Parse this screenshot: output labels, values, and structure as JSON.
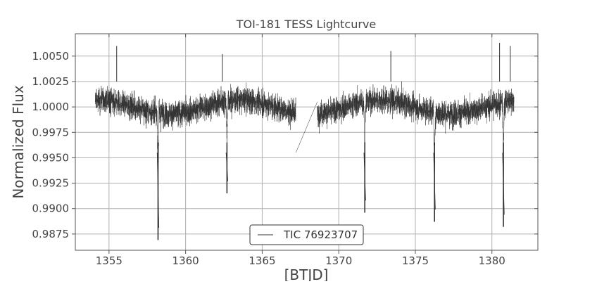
{
  "chart_data": {
    "type": "line",
    "title": "TOI-181 TESS Lightcurve",
    "xlabel": "[BTJD]",
    "ylabel": "Normalized Flux",
    "xlim": [
      1352.8,
      1383.0
    ],
    "ylim": [
      0.9859,
      1.0072
    ],
    "xticks": [
      1355,
      1360,
      1365,
      1370,
      1375,
      1380
    ],
    "xtick_labels": [
      "1355",
      "1360",
      "1365",
      "1370",
      "1375",
      "1380"
    ],
    "yticks": [
      0.9875,
      0.99,
      0.9925,
      0.995,
      0.9975,
      1.0,
      1.0025,
      1.005
    ],
    "ytick_labels": [
      "0.9875",
      "0.9900",
      "0.9925",
      "0.9950",
      "0.9975",
      "1.0000",
      "1.0025",
      "1.0050"
    ],
    "grid": true,
    "legend_position": "bottom-center",
    "colors": {
      "line": "#333333",
      "grid": "#b0b0b0",
      "axes": "#555555",
      "text": "#444444"
    },
    "series": [
      {
        "name": "TIC 76923707",
        "segments": [
          {
            "x_range": [
              1354.1,
              1367.2
            ],
            "baseline": 1.0,
            "scatter_band": [
              0.9965,
              1.0035
            ]
          },
          {
            "x_range": [
              1368.6,
              1381.45
            ],
            "baseline": 1.0,
            "scatter_band": [
              0.9965,
              1.0035
            ]
          }
        ],
        "gap": {
          "from": [
            1367.2,
            0.9955
          ],
          "to": [
            1368.6,
            1.0005
          ]
        },
        "transits": [
          {
            "x": 1358.2,
            "min_flux": 0.9869
          },
          {
            "x": 1362.7,
            "min_flux": 0.9915
          },
          {
            "x": 1371.7,
            "min_flux": 0.9896
          },
          {
            "x": 1376.25,
            "min_flux": 0.9887
          },
          {
            "x": 1380.75,
            "min_flux": 0.9882
          }
        ],
        "notable_points": [
          {
            "x": 1355.5,
            "y": 1.006
          },
          {
            "x": 1362.4,
            "y": 1.0052
          },
          {
            "x": 1373.4,
            "y": 1.0055
          },
          {
            "x": 1380.5,
            "y": 1.0063
          },
          {
            "x": 1381.2,
            "y": 1.006
          }
        ]
      }
    ]
  }
}
